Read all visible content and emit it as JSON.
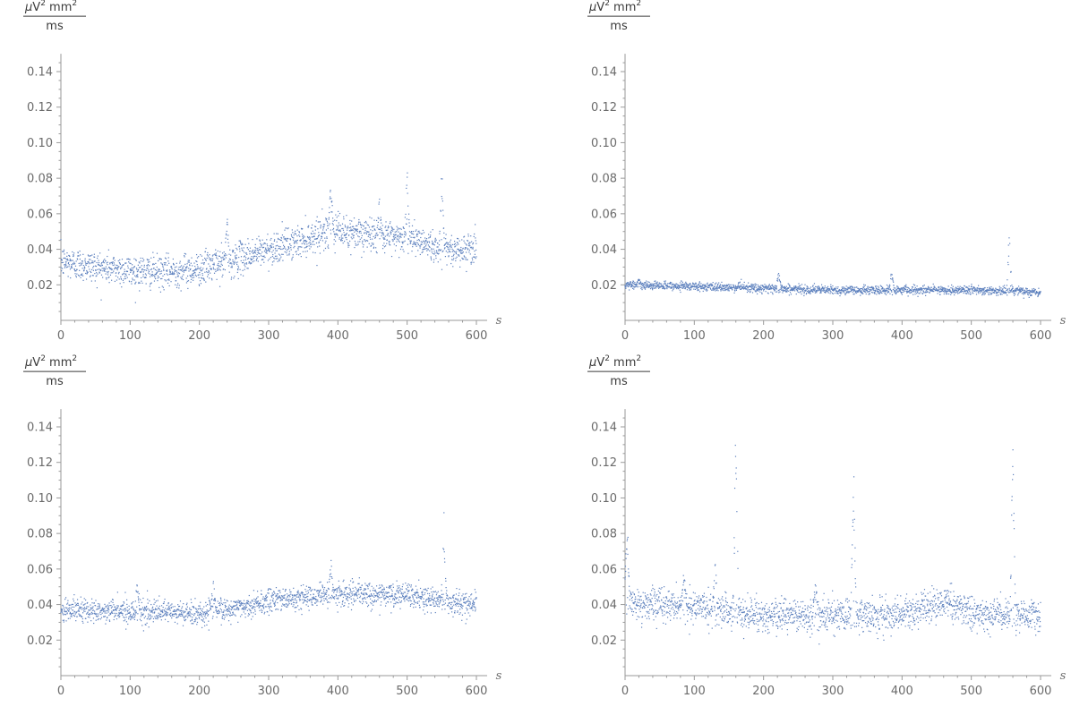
{
  "chart_data": [
    {
      "type": "scatter",
      "panel": "top-left",
      "ylabel_numerator": "μV² mm²",
      "ylabel_numerator_parts": {
        "mu": "μ",
        "v": "V",
        "sup1": "2",
        "mm": " mm",
        "sup2": "2"
      },
      "ylabel_denominator": "ms",
      "xlabel": "s",
      "xlim": [
        0,
        600
      ],
      "ylim": [
        0,
        0.15
      ],
      "x_ticks": [
        "0",
        "100",
        "200",
        "300",
        "400",
        "500",
        "600"
      ],
      "y_ticks": [
        "0.02",
        "0.04",
        "0.06",
        "0.08",
        "0.10",
        "0.12",
        "0.14"
      ],
      "color": "#5b7fbd",
      "trend": {
        "x": [
          0,
          50,
          100,
          150,
          200,
          250,
          300,
          350,
          380,
          400,
          450,
          500,
          550,
          600
        ],
        "y": [
          0.033,
          0.03,
          0.028,
          0.027,
          0.029,
          0.034,
          0.04,
          0.045,
          0.05,
          0.05,
          0.048,
          0.047,
          0.04,
          0.04
        ]
      },
      "noise": 0.0045,
      "spikes": [
        {
          "x": 390,
          "y": 0.084
        },
        {
          "x": 500,
          "y": 0.09
        },
        {
          "x": 550,
          "y": 0.093
        },
        {
          "x": 460,
          "y": 0.07
        },
        {
          "x": 240,
          "y": 0.06
        }
      ]
    },
    {
      "type": "scatter",
      "panel": "top-right",
      "ylabel_numerator": "μV² mm²",
      "ylabel_numerator_parts": {
        "mu": "μ",
        "v": "V",
        "sup1": "2",
        "mm": " mm",
        "sup2": "2"
      },
      "ylabel_denominator": "ms",
      "xlabel": "s",
      "xlim": [
        0,
        600
      ],
      "ylim": [
        0,
        0.15
      ],
      "x_ticks": [
        "0",
        "100",
        "200",
        "300",
        "400",
        "500",
        "600"
      ],
      "y_ticks": [
        "0.02",
        "0.04",
        "0.06",
        "0.08",
        "0.10",
        "0.12",
        "0.14"
      ],
      "color": "#5b7fbd",
      "trend": {
        "x": [
          0,
          100,
          200,
          300,
          400,
          500,
          600
        ],
        "y": [
          0.02,
          0.019,
          0.018,
          0.017,
          0.017,
          0.017,
          0.016
        ]
      },
      "noise": 0.0012,
      "spikes": [
        {
          "x": 555,
          "y": 0.054
        },
        {
          "x": 222,
          "y": 0.029
        },
        {
          "x": 385,
          "y": 0.029
        },
        {
          "x": 20,
          "y": 0.025
        }
      ]
    },
    {
      "type": "scatter",
      "panel": "bottom-left",
      "ylabel_numerator": "μV² mm²",
      "ylabel_numerator_parts": {
        "mu": "μ",
        "v": "V",
        "sup1": "2",
        "mm": " mm",
        "sup2": "2"
      },
      "ylabel_denominator": "ms",
      "xlabel": "s",
      "xlim": [
        0,
        600
      ],
      "ylim": [
        0,
        0.15
      ],
      "x_ticks": [
        "0",
        "100",
        "200",
        "300",
        "400",
        "500",
        "600"
      ],
      "y_ticks": [
        "0.02",
        "0.04",
        "0.06",
        "0.08",
        "0.10",
        "0.12",
        "0.14"
      ],
      "color": "#5b7fbd",
      "trend": {
        "x": [
          0,
          100,
          200,
          250,
          300,
          350,
          400,
          500,
          550,
          600
        ],
        "y": [
          0.037,
          0.036,
          0.035,
          0.038,
          0.042,
          0.044,
          0.046,
          0.045,
          0.042,
          0.04
        ]
      },
      "noise": 0.0033,
      "spikes": [
        {
          "x": 553,
          "y": 0.094
        },
        {
          "x": 220,
          "y": 0.058
        },
        {
          "x": 110,
          "y": 0.056
        },
        {
          "x": 390,
          "y": 0.066
        }
      ]
    },
    {
      "type": "scatter",
      "panel": "bottom-right",
      "ylabel_numerator": "μV² mm²",
      "ylabel_numerator_parts": {
        "mu": "μ",
        "v": "V",
        "sup1": "2",
        "mm": " mm",
        "sup2": "2"
      },
      "ylabel_denominator": "ms",
      "xlabel": "s",
      "xlim": [
        0,
        600
      ],
      "ylim": [
        0,
        0.15
      ],
      "x_ticks": [
        "0",
        "100",
        "200",
        "300",
        "400",
        "500",
        "600"
      ],
      "y_ticks": [
        "0.02",
        "0.04",
        "0.06",
        "0.08",
        "0.10",
        "0.12",
        "0.14"
      ],
      "color": "#5b7fbd",
      "trend": {
        "x": [
          0,
          50,
          100,
          200,
          300,
          400,
          460,
          500,
          600
        ],
        "y": [
          0.042,
          0.04,
          0.039,
          0.034,
          0.034,
          0.034,
          0.042,
          0.035,
          0.034
        ]
      },
      "noise": 0.0045,
      "spikes": [
        {
          "x": 160,
          "y": 0.15
        },
        {
          "x": 330,
          "y": 0.128
        },
        {
          "x": 560,
          "y": 0.142
        },
        {
          "x": 3,
          "y": 0.095
        },
        {
          "x": 275,
          "y": 0.06
        },
        {
          "x": 130,
          "y": 0.068
        },
        {
          "x": 85,
          "y": 0.065
        }
      ]
    }
  ]
}
